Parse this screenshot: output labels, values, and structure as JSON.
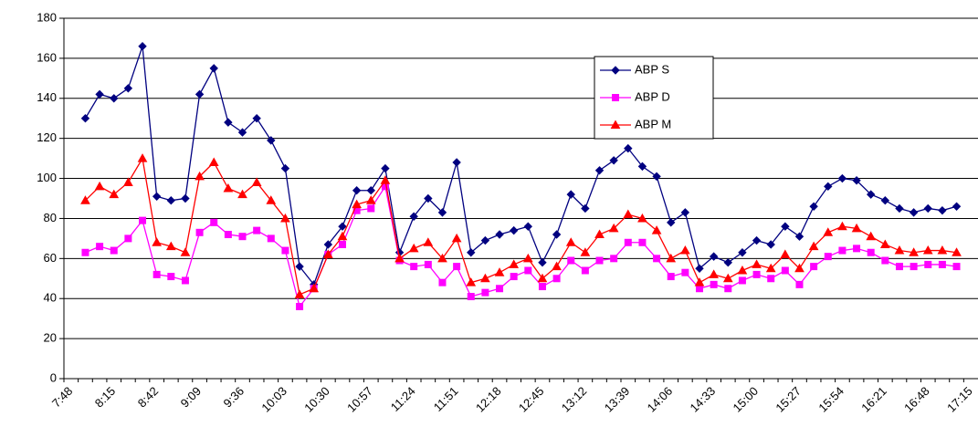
{
  "chart_data": {
    "type": "line",
    "categories": [
      "7:48",
      null,
      null,
      "8:15",
      null,
      null,
      "8:42",
      null,
      null,
      "9:09",
      null,
      null,
      "9:36",
      null,
      null,
      "10:03",
      null,
      null,
      "10:30",
      null,
      null,
      "10:57",
      null,
      null,
      "11:24",
      null,
      null,
      "11:51",
      null,
      null,
      "12:18",
      null,
      null,
      "12:45",
      null,
      null,
      "13:12",
      null,
      null,
      "13:39",
      null,
      null,
      "14:06",
      null,
      null,
      "14:33",
      null,
      null,
      "15:00",
      null,
      null,
      "15:27",
      null,
      null,
      "15:54",
      null,
      null,
      "16:21",
      null,
      null,
      "16:48",
      null,
      null,
      "17:15"
    ],
    "series": [
      {
        "name": "ABP S",
        "color": "#000080",
        "marker": "diamond",
        "values": [
          null,
          130,
          142,
          140,
          145,
          166,
          91,
          89,
          90,
          142,
          155,
          128,
          123,
          130,
          119,
          105,
          56,
          47,
          67,
          76,
          94,
          94,
          105,
          63,
          81,
          90,
          83,
          108,
          63,
          69,
          72,
          74,
          76,
          58,
          72,
          92,
          85,
          104,
          109,
          115,
          106,
          101,
          78,
          83,
          55,
          61,
          58,
          63,
          69,
          67,
          76,
          71,
          86,
          96,
          100,
          99,
          92,
          89,
          85,
          83,
          85,
          84,
          86,
          null
        ]
      },
      {
        "name": "ABP D",
        "color": "#ff00ff",
        "marker": "square",
        "values": [
          null,
          63,
          66,
          64,
          70,
          79,
          52,
          51,
          49,
          73,
          78,
          72,
          71,
          74,
          70,
          64,
          36,
          45,
          62,
          67,
          84,
          85,
          96,
          59,
          56,
          57,
          48,
          56,
          41,
          43,
          45,
          51,
          54,
          46,
          50,
          59,
          54,
          59,
          60,
          68,
          68,
          60,
          51,
          53,
          45,
          47,
          45,
          49,
          52,
          50,
          54,
          47,
          56,
          61,
          64,
          65,
          63,
          59,
          56,
          56,
          57,
          57,
          56,
          null
        ]
      },
      {
        "name": "ABP M",
        "color": "#ff0000",
        "marker": "triangle",
        "values": [
          null,
          89,
          96,
          92,
          98,
          110,
          68,
          66,
          63,
          101,
          108,
          95,
          92,
          98,
          89,
          80,
          42,
          45,
          62,
          71,
          87,
          89,
          99,
          60,
          65,
          68,
          60,
          70,
          48,
          50,
          53,
          57,
          60,
          50,
          56,
          68,
          63,
          72,
          75,
          82,
          80,
          74,
          60,
          64,
          48,
          52,
          50,
          54,
          57,
          55,
          62,
          55,
          66,
          73,
          76,
          75,
          71,
          67,
          64,
          63,
          64,
          64,
          63,
          null
        ]
      }
    ],
    "ylim": [
      0,
      180
    ],
    "yticks": [
      0,
      20,
      40,
      60,
      80,
      100,
      120,
      140,
      160,
      180
    ],
    "grid": true,
    "legend": "upper-right"
  }
}
